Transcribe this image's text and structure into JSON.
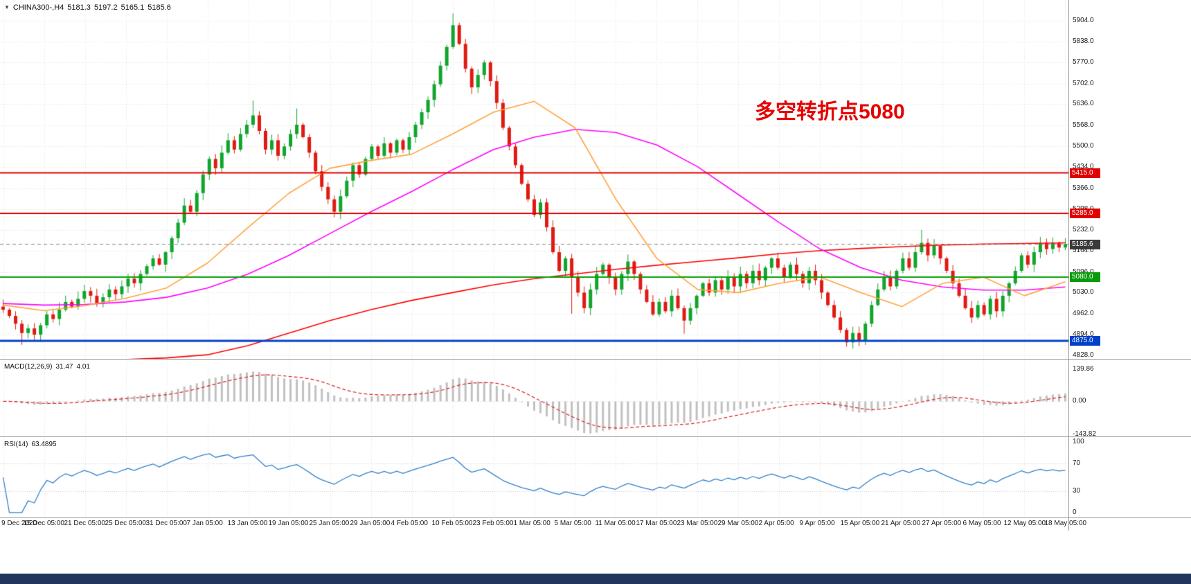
{
  "header": {
    "symbol": "CHINA300-,H4",
    "open": "5181.3",
    "high": "5197.2",
    "low": "5165.1",
    "close": "5185.6"
  },
  "annotation": {
    "text": "多空转折点5080",
    "color": "#e60000"
  },
  "chart_data": {
    "type": "candlestick",
    "symbol": "CHINA300-",
    "timeframe": "H4",
    "up_color": "#10a52c",
    "down_color": "#e01a12",
    "grid_color": "#e3e3e3",
    "x_labels": [
      "9 Dec 2020",
      "15 Dec 05:00",
      "21 Dec 05:00",
      "25 Dec 05:00",
      "31 Dec 05:00",
      "7 Jan 05:00",
      "13 Jan 05:00",
      "19 Jan 05:00",
      "25 Jan 05:00",
      "29 Jan 05:00",
      "4 Feb 05:00",
      "10 Feb 05:00",
      "23 Feb 05:00",
      "1 Mar 05:00",
      "5 Mar 05:00",
      "11 Mar 05:00",
      "17 Mar 05:00",
      "23 Mar 05:00",
      "29 Mar 05:00",
      "2 Apr 05:00",
      "9 Apr 05:00",
      "15 Apr 05:00",
      "21 Apr 05:00",
      "27 Apr 05:00",
      "6 May 05:00",
      "12 May 05:00",
      "18 May 05:00"
    ],
    "y_axis": {
      "labels": [
        "5904.0",
        "5838.0",
        "5770.0",
        "5702.0",
        "5636.0",
        "5568.0",
        "5500.0",
        "5434.0",
        "5366.0",
        "5298.0",
        "5232.0",
        "5164.0",
        "5096.0",
        "5030.0",
        "4962.0",
        "4894.0",
        "4828.0"
      ],
      "max": 5971,
      "min": 4817
    },
    "closes": [
      4975,
      4955,
      4930,
      4900,
      4915,
      4895,
      4925,
      4960,
      4945,
      4975,
      5000,
      4985,
      5010,
      5035,
      5020,
      4995,
      5015,
      5040,
      5025,
      5050,
      5075,
      5060,
      5090,
      5115,
      5140,
      5120,
      5160,
      5205,
      5255,
      5310,
      5290,
      5350,
      5410,
      5460,
      5430,
      5480,
      5520,
      5490,
      5540,
      5570,
      5600,
      5550,
      5490,
      5520,
      5470,
      5500,
      5540,
      5570,
      5530,
      5480,
      5420,
      5370,
      5330,
      5290,
      5340,
      5390,
      5440,
      5410,
      5460,
      5500,
      5470,
      5510,
      5480,
      5520,
      5490,
      5530,
      5570,
      5610,
      5650,
      5700,
      5760,
      5820,
      5890,
      5830,
      5750,
      5690,
      5730,
      5770,
      5710,
      5640,
      5560,
      5500,
      5440,
      5380,
      5330,
      5280,
      5320,
      5240,
      5160,
      5100,
      5140,
      5080,
      5030,
      4980,
      5040,
      5090,
      5120,
      5080,
      5040,
      5090,
      5130,
      5090,
      5040,
      5000,
      4960,
      5000,
      4970,
      5020,
      4980,
      4940,
      4980,
      5020,
      5060,
      5030,
      5070,
      5040,
      5080,
      5050,
      5090,
      5060,
      5100,
      5070,
      5110,
      5140,
      5110,
      5080,
      5120,
      5090,
      5060,
      5100,
      5070,
      5030,
      4990,
      4950,
      4910,
      4870,
      4900,
      4875,
      4930,
      4990,
      5040,
      5080,
      5050,
      5100,
      5140,
      5110,
      5160,
      5190,
      5150,
      5180,
      5140,
      5100,
      5060,
      5020,
      4980,
      4950,
      4990,
      4960,
      5010,
      4970,
      5020,
      5060,
      5100,
      5150,
      5120,
      5160,
      5190,
      5170,
      5190,
      5175,
      5186
    ],
    "wick_overrides": {
      "3": {
        "low": 4862
      },
      "40": {
        "high": 5648
      },
      "47": {
        "high": 5622
      },
      "72": {
        "high": 5928
      },
      "91": {
        "low": 4962
      },
      "109": {
        "low": 4898
      },
      "135": {
        "low": 4856
      },
      "137": {
        "low": 4858
      },
      "147": {
        "high": 5232
      }
    },
    "moving_averages": [
      {
        "name": "ma-slow-red",
        "color": "#ff0000",
        "values": [
          4800,
          4805,
          4810,
          4815,
          4820,
          4830,
          4860,
          4900,
          4940,
          4975,
          5005,
          5030,
          5055,
          5075,
          5090,
          5105,
          5118,
          5130,
          5142,
          5155,
          5165,
          5172,
          5178,
          5183,
          5186,
          5188,
          5190
        ]
      },
      {
        "name": "ma-mid-magenta",
        "color": "#ff00ff",
        "values": [
          4995,
          4990,
          4992,
          5000,
          5015,
          5045,
          5090,
          5150,
          5220,
          5290,
          5355,
          5425,
          5490,
          5530,
          5555,
          5545,
          5505,
          5435,
          5345,
          5255,
          5170,
          5110,
          5070,
          5048,
          5038,
          5038,
          5048
        ]
      },
      {
        "name": "ma-fast-orange",
        "color": "#ffa33c",
        "values": [
          4990,
          4972,
          4988,
          5012,
          5045,
          5125,
          5240,
          5350,
          5430,
          5455,
          5475,
          5540,
          5610,
          5645,
          5560,
          5330,
          5140,
          5040,
          5030,
          5060,
          5080,
          5030,
          4985,
          5060,
          5080,
          5020,
          5065
        ]
      }
    ],
    "hlines": [
      {
        "name": "resistance-5415",
        "price": 5415,
        "color": "#e00000",
        "width": 2,
        "style": "solid"
      },
      {
        "name": "resistance-5285",
        "price": 5285,
        "color": "#e00000",
        "width": 2,
        "style": "solid"
      },
      {
        "name": "pivot-5080",
        "price": 5080,
        "color": "#00a000",
        "width": 2,
        "style": "solid"
      },
      {
        "name": "support-4875",
        "price": 4875,
        "color": "#0040c8",
        "width": 3,
        "style": "solid"
      },
      {
        "name": "current-price",
        "price": 5185.6,
        "color": "#8a8a8a",
        "width": 1,
        "style": "dash"
      }
    ],
    "current_price": 5185.6,
    "price_tags": [
      {
        "value": "5415.0",
        "price": 5415,
        "bg": "#e00000"
      },
      {
        "value": "5285.0",
        "price": 5285,
        "bg": "#e00000"
      },
      {
        "value": "5185.6",
        "price": 5185.6,
        "bg": "#3a3a3a"
      },
      {
        "value": "5080.0",
        "price": 5080,
        "bg": "#0a9a0a"
      },
      {
        "value": "4875.0",
        "price": 4875,
        "bg": "#0040c8"
      }
    ]
  },
  "macd": {
    "label": "MACD(12,26,9)",
    "value_main": "31.47",
    "value_signal": "4.01",
    "y_labels": [
      "139.86",
      "0.00",
      "-143.82"
    ],
    "axis": {
      "max": 182,
      "min": -153
    },
    "params": {
      "fast": 12,
      "slow": 26,
      "signal": 9
    },
    "hist_color": "#c0c0c0",
    "signal_color": "#d82020"
  },
  "rsi": {
    "label": "RSI(14)",
    "value": "63.4895",
    "y_labels": [
      "100",
      "70",
      "30",
      "0"
    ],
    "levels": [
      70,
      30
    ],
    "axis": {
      "max": 107,
      "min": -7
    },
    "period": 14,
    "line_color": "#2f80c8",
    "level_color": "#c8c8de"
  },
  "taskbar": {
    "color": "#20365c"
  }
}
